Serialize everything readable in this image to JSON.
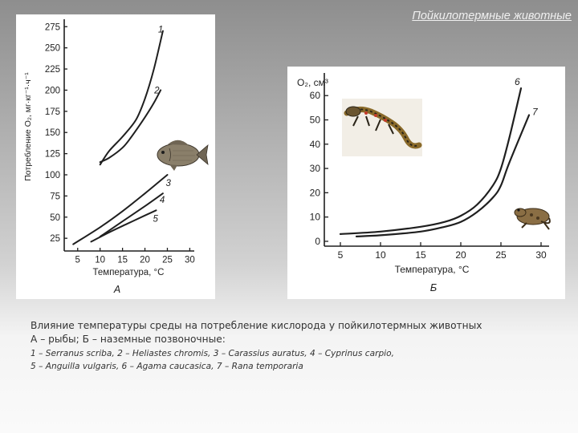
{
  "slide": {
    "title": "Пойкилотермные животные"
  },
  "caption": {
    "line1": "Влияние температуры среды на потребление кислорода у пойкилотермных животных",
    "line2": "А – рыбы; Б – наземные позвоночные:",
    "line3": "1 – Serranus scriba, 2 – Heliastes chromis, 3 – Carassius auratus,  4 – Cyprinus carpio,",
    "line4": "5 – Anguilla vulgaris, 6 – Agama caucasica, 7 – Rana temporaria"
  },
  "chart_data": [
    {
      "type": "line",
      "panel_label": "А",
      "xlabel": "Температура, °С",
      "ylabel": "Потребление О₂, мг·кг⁻¹·ч⁻¹",
      "xlim": [
        2,
        31
      ],
      "ylim": [
        10,
        280
      ],
      "x_ticks": [
        5,
        10,
        15,
        20,
        25,
        30
      ],
      "y_ticks": [
        25,
        50,
        75,
        100,
        125,
        150,
        175,
        200,
        225,
        250,
        275
      ],
      "grid": false,
      "series": [
        {
          "name": "1",
          "x": [
            10,
            12,
            15,
            18,
            20,
            22,
            24
          ],
          "y": [
            112,
            128,
            145,
            165,
            190,
            225,
            270
          ]
        },
        {
          "name": "2",
          "x": [
            10,
            12,
            15,
            17,
            20,
            22,
            23.5
          ],
          "y": [
            115,
            120,
            132,
            145,
            168,
            185,
            200
          ]
        },
        {
          "name": "3",
          "x": [
            4,
            10,
            15,
            20,
            25
          ],
          "y": [
            18,
            38,
            57,
            78,
            100
          ]
        },
        {
          "name": "4",
          "x": [
            10,
            15,
            20,
            24
          ],
          "y": [
            27,
            45,
            63,
            78
          ]
        },
        {
          "name": "5",
          "x": [
            8,
            12,
            16,
            20,
            22.5
          ],
          "y": [
            21,
            32,
            42,
            52,
            58
          ]
        }
      ]
    },
    {
      "type": "line",
      "panel_label": "Б",
      "xlabel": "Температура, °С",
      "ylabel": "О₂, см³",
      "xlim": [
        3,
        31
      ],
      "ylim": [
        -2,
        68
      ],
      "x_ticks": [
        5,
        10,
        15,
        20,
        25,
        30
      ],
      "y_ticks": [
        0,
        10,
        20,
        30,
        40,
        50,
        60
      ],
      "grid": false,
      "series": [
        {
          "name": "6",
          "x": [
            5,
            10,
            15,
            18,
            20,
            22,
            24,
            25,
            26,
            27.5
          ],
          "y": [
            3,
            4,
            6,
            8,
            10.5,
            15,
            23,
            30,
            42,
            63
          ]
        },
        {
          "name": "7",
          "x": [
            7,
            10,
            15,
            18,
            20,
            22,
            24,
            25,
            26,
            28.5
          ],
          "y": [
            2,
            2.5,
            4,
            6,
            8,
            12,
            18,
            23,
            32,
            52
          ]
        }
      ]
    }
  ]
}
